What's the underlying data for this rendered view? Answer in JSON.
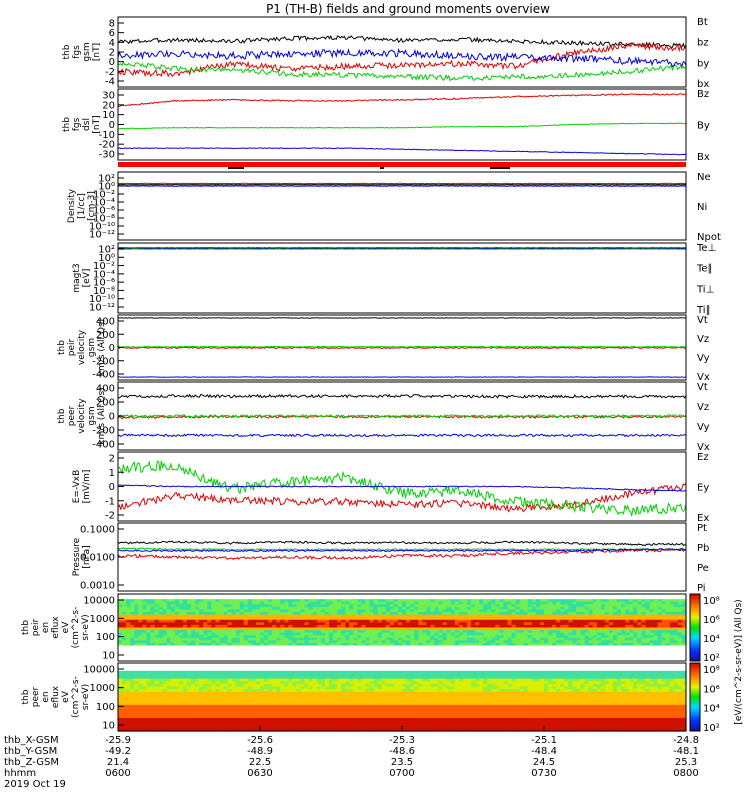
{
  "title": "P1 (TH-B) fields and ground moments overview",
  "colors": {
    "black": "#000000",
    "red": "#e00000",
    "green": "#00d000",
    "blue": "#0000e0"
  },
  "chart_data": [
    {
      "type": "line",
      "name": "fgs",
      "ylabel": [
        "thb",
        "fgs",
        "gsm",
        "[nT]"
      ],
      "yticks": [
        "8",
        "6",
        "4",
        "2",
        "0",
        "-2",
        "-4"
      ],
      "ylim": [
        -4.5,
        9
      ],
      "legend": [
        {
          "label": "Bt",
          "color": "black"
        },
        {
          "label": "bz",
          "color": "red"
        },
        {
          "label": "by",
          "color": "green"
        },
        {
          "label": "bx",
          "color": "blue"
        }
      ],
      "series": [
        {
          "name": "Bt",
          "color": "black",
          "base": [
            4.2,
            4.6,
            4.3,
            4.9,
            5.0,
            4.5,
            4.7,
            4.3,
            4.0,
            3.7,
            3.5
          ],
          "noise": 0.4
        },
        {
          "name": "bz",
          "color": "red",
          "base": [
            -1.5,
            -2.0,
            0.0,
            -1.0,
            -0.5,
            -0.3,
            0.0,
            -0.5,
            2.0,
            3.5,
            3.0
          ],
          "noise": 0.6
        },
        {
          "name": "by",
          "color": "green",
          "base": [
            0.2,
            -1.0,
            -1.2,
            -2.0,
            -2.2,
            -2.5,
            -2.8,
            -2.6,
            -2.2,
            -1.5,
            -0.5
          ],
          "noise": 0.5
        },
        {
          "name": "bx",
          "color": "blue",
          "base": [
            1.5,
            2.0,
            1.5,
            2.0,
            2.0,
            2.0,
            1.5,
            1.2,
            1.0,
            0.5,
            0.0
          ],
          "noise": 0.7
        }
      ]
    },
    {
      "type": "line",
      "name": "fgs_dsl",
      "ylabel": [
        "thb",
        "fgs",
        "dsl",
        "[nT]"
      ],
      "yticks": [
        "30",
        "20",
        "10",
        "0",
        "-10",
        "-20",
        "-30"
      ],
      "ylim": [
        -33,
        33
      ],
      "legend": [
        {
          "label": "Bz",
          "color": "red"
        },
        {
          "label": "By",
          "color": "green"
        },
        {
          "label": "Bx",
          "color": "blue"
        }
      ],
      "series": [
        {
          "name": "Bz",
          "color": "red",
          "base": [
            17,
            22,
            23,
            22,
            22,
            23,
            24,
            26,
            27,
            28,
            28
          ],
          "noise": 0.6
        },
        {
          "name": "By",
          "color": "green",
          "base": [
            -4,
            -3,
            -3,
            -3,
            -3,
            -3,
            -2,
            -2,
            0,
            1,
            1
          ],
          "noise": 0.3
        },
        {
          "name": "Bx",
          "color": "blue",
          "base": [
            -22,
            -22,
            -22,
            -22,
            -22,
            -23,
            -24,
            -25,
            -26,
            -27,
            -28
          ],
          "noise": 0.3
        }
      ]
    },
    {
      "type": "line",
      "name": "density",
      "ylabel": [
        "Density",
        "[1/cc]",
        "[cm-3]"
      ],
      "yticks": [
        "10²",
        "10⁰",
        "10⁻²",
        "10⁻⁴",
        "10⁻⁶",
        "10⁻⁸",
        "10⁻¹⁰",
        "10⁻¹²"
      ],
      "ylim": [
        -13,
        3
      ],
      "log": true,
      "legend": [
        {
          "label": "Ne",
          "color": "red"
        },
        {
          "label": "Ni",
          "color": "black"
        },
        {
          "label": "Npot",
          "color": "blue"
        }
      ],
      "series": [
        {
          "name": "Ne",
          "color": "red",
          "base": [
            0.3,
            0.3,
            0.3,
            0.3,
            0.3,
            0.3,
            0.3,
            0.3,
            0.3,
            0.3,
            0.3
          ],
          "noise": 0.05
        },
        {
          "name": "Ni",
          "color": "black",
          "base": [
            0.0,
            0.0,
            0.0,
            0.0,
            0.0,
            0.0,
            0.0,
            0.0,
            0.0,
            0.0,
            0.0
          ],
          "noise": 0.05
        },
        {
          "name": "Npot",
          "color": "blue",
          "base": [
            -0.3,
            -0.3,
            -0.3,
            -0.3,
            -0.3,
            -0.3,
            -0.3,
            -0.3,
            -0.3,
            -0.3,
            -0.3
          ],
          "noise": 0.05
        }
      ]
    },
    {
      "type": "line",
      "name": "temperature",
      "ylabel": [
        "magt3",
        "[eV]"
      ],
      "yticks": [
        "10²",
        "10⁰",
        "10⁻²",
        "10⁻⁴",
        "10⁻⁶",
        "10⁻⁸",
        "10⁻¹⁰",
        "10⁻¹²"
      ],
      "ylim": [
        -13,
        3
      ],
      "log": true,
      "legend": [
        {
          "label": "Te⊥",
          "color": "red"
        },
        {
          "label": "Te∥",
          "color": "black"
        },
        {
          "label": "Ti⊥",
          "color": "blue"
        },
        {
          "label": "Ti∥",
          "color": "green"
        }
      ],
      "series": [
        {
          "name": "Te⊥",
          "color": "red",
          "base": [
            1.9,
            1.9,
            1.9,
            1.9,
            1.9,
            1.9,
            1.9,
            1.9,
            1.9,
            1.9,
            1.9
          ],
          "noise": 0.05
        },
        {
          "name": "Te∥",
          "color": "black",
          "base": [
            1.8,
            1.8,
            1.8,
            1.8,
            1.8,
            1.8,
            1.8,
            1.8,
            1.8,
            1.8,
            1.8
          ],
          "noise": 0.05
        },
        {
          "name": "Ti⊥",
          "color": "blue",
          "base": [
            1.7,
            1.7,
            1.7,
            1.7,
            1.7,
            1.7,
            1.7,
            1.7,
            1.7,
            1.7,
            1.7
          ],
          "noise": 0.05
        },
        {
          "name": "Ti∥",
          "color": "green",
          "base": [
            1.6,
            1.6,
            1.6,
            1.6,
            1.6,
            1.6,
            1.6,
            1.6,
            1.6,
            1.6,
            1.6
          ],
          "noise": 0.05
        }
      ]
    },
    {
      "type": "line",
      "name": "peir_velocity",
      "ylabel": [
        "thb",
        "peir",
        "velocity",
        "gsm",
        "km/s (All Qs)"
      ],
      "yticks": [
        "400",
        "200",
        "0",
        "-200",
        "-400"
      ],
      "ylim": [
        -440,
        440
      ],
      "legend": [
        {
          "label": "Vt",
          "color": "black"
        },
        {
          "label": "Vz",
          "color": "red"
        },
        {
          "label": "Vy",
          "color": "green"
        },
        {
          "label": "Vx",
          "color": "blue"
        }
      ],
      "series": [
        {
          "name": "Vt",
          "color": "black",
          "base": [
            400,
            400,
            400,
            400,
            400,
            400,
            400,
            400,
            400,
            400,
            400
          ],
          "noise": 3
        },
        {
          "name": "Vz",
          "color": "red",
          "base": [
            -5,
            -5,
            -5,
            -5,
            -5,
            -5,
            -5,
            -5,
            -5,
            -5,
            -5
          ],
          "noise": 8
        },
        {
          "name": "Vy",
          "color": "green",
          "base": [
            10,
            10,
            10,
            10,
            10,
            10,
            10,
            10,
            10,
            10,
            10
          ],
          "noise": 6
        },
        {
          "name": "Vx",
          "color": "blue",
          "base": [
            -400,
            -400,
            -400,
            -400,
            -400,
            -400,
            -400,
            -400,
            -400,
            -400,
            -400
          ],
          "noise": 3
        }
      ]
    },
    {
      "type": "line",
      "name": "peer_velocity",
      "ylabel": [
        "thb",
        "peer",
        "velocity",
        "gsm",
        "km/s (All Qs)"
      ],
      "yticks": [
        "400",
        "200",
        "0",
        "-200",
        "-400"
      ],
      "ylim": [
        -440,
        440
      ],
      "legend": [
        {
          "label": "Vt",
          "color": "black"
        },
        {
          "label": "Vz",
          "color": "red"
        },
        {
          "label": "Vy",
          "color": "green"
        },
        {
          "label": "Vx",
          "color": "blue"
        }
      ],
      "series": [
        {
          "name": "Vt",
          "color": "black",
          "base": [
            250,
            260,
            255,
            260,
            255,
            260,
            255,
            250,
            255,
            250,
            250
          ],
          "noise": 18
        },
        {
          "name": "Vz",
          "color": "red",
          "base": [
            -20,
            -15,
            -10,
            -10,
            -10,
            -10,
            -10,
            -15,
            -10,
            -10,
            -10
          ],
          "noise": 15
        },
        {
          "name": "Vy",
          "color": "green",
          "base": [
            0,
            0,
            0,
            0,
            0,
            0,
            0,
            0,
            0,
            0,
            0
          ],
          "noise": 15
        },
        {
          "name": "Vx",
          "color": "blue",
          "base": [
            -250,
            -250,
            -250,
            -250,
            -250,
            -250,
            -250,
            -250,
            -250,
            -250,
            -250
          ],
          "noise": 15
        }
      ]
    },
    {
      "type": "line",
      "name": "efield",
      "ylabel": [
        "E=-VxB",
        "[mV/m]"
      ],
      "yticks": [
        "2",
        "1",
        "0",
        "-1",
        "-2"
      ],
      "ylim": [
        -2.3,
        2.3
      ],
      "legend": [
        {
          "label": "Ez",
          "color": "red"
        },
        {
          "label": "Ey",
          "color": "green"
        },
        {
          "label": "Ex",
          "color": "blue"
        }
      ],
      "series": [
        {
          "name": "Ez",
          "color": "red",
          "base": [
            -1.4,
            -0.6,
            -0.9,
            -1.0,
            -1.0,
            -1.2,
            -1.1,
            -1.5,
            -1.2,
            -0.5,
            0.0
          ],
          "noise": 0.25
        },
        {
          "name": "Ey",
          "color": "green",
          "base": [
            1.2,
            1.4,
            -0.2,
            0.3,
            0.6,
            -0.4,
            -0.3,
            -1.0,
            -1.3,
            -1.6,
            -1.4
          ],
          "noise": 0.35
        },
        {
          "name": "Ex",
          "color": "blue",
          "base": [
            0.1,
            0.0,
            0.0,
            0.0,
            0.0,
            0.0,
            0.0,
            0.0,
            -0.1,
            -0.2,
            -0.3
          ],
          "noise": 0.03
        }
      ]
    },
    {
      "type": "line",
      "name": "pressure",
      "ylabel": [
        "Pressure",
        "[nPa]"
      ],
      "yticks": [
        "0.1000",
        "0.0100",
        "0.0010"
      ],
      "ylim": [
        -3.5,
        -0.8
      ],
      "log": true,
      "legend": [
        {
          "label": "Pt",
          "color": "black"
        },
        {
          "label": "Pb",
          "color": "red"
        },
        {
          "label": "Pe",
          "color": "green"
        },
        {
          "label": "Pi",
          "color": "blue"
        }
      ],
      "series": [
        {
          "name": "Pt",
          "color": "black",
          "base": [
            -1.6,
            -1.55,
            -1.6,
            -1.55,
            -1.6,
            -1.58,
            -1.6,
            -1.55,
            -1.6,
            -1.65,
            -1.65
          ],
          "noise": 0.04
        },
        {
          "name": "Pb",
          "color": "red",
          "base": [
            -2.1,
            -2.15,
            -2.2,
            -2.15,
            -2.2,
            -2.1,
            -2.1,
            -2.0,
            -1.95,
            -1.9,
            -1.9
          ],
          "noise": 0.06
        },
        {
          "name": "Pe",
          "color": "green",
          "base": [
            -1.8,
            -1.85,
            -1.85,
            -1.85,
            -1.85,
            -1.85,
            -1.85,
            -1.85,
            -1.85,
            -1.85,
            -1.85
          ],
          "noise": 0.03
        },
        {
          "name": "Pi",
          "color": "blue",
          "base": [
            -1.9,
            -1.9,
            -1.9,
            -1.9,
            -1.9,
            -1.9,
            -1.9,
            -1.9,
            -1.9,
            -1.85,
            -1.85
          ],
          "noise": 0.03
        }
      ]
    },
    {
      "type": "heatmap",
      "name": "peir_spec",
      "ylabel": [
        "thb",
        "peir",
        "en",
        "eflux",
        "eV",
        "(cm^2-s-",
        "sr-eV)"
      ],
      "yticks": [
        "10000",
        "1000",
        "100",
        "10"
      ],
      "ylim": [
        0.6,
        4.2
      ],
      "log": true,
      "cbar_ticks": [
        "10⁸",
        "10⁶",
        "10⁴",
        "10²"
      ]
    },
    {
      "type": "heatmap",
      "name": "peer_spec",
      "ylabel": [
        "thb",
        "peer",
        "en",
        "eflux",
        "eV",
        "(cm^2-s-",
        "sr-eV)"
      ],
      "yticks": [
        "10000",
        "1000",
        "100",
        "10"
      ],
      "ylim": [
        0.6,
        4.2
      ],
      "log": true,
      "cbar_ticks": [
        "10⁸",
        "10⁶",
        "10⁴",
        "10²"
      ]
    }
  ],
  "colorbar_label": "[eV/(cm^2-s-sr-eV)] (All Qs)",
  "xaxis": {
    "rows": [
      {
        "label": "thb_X-GSM",
        "values": [
          "-25.9",
          "-25.6",
          "-25.3",
          "-25.1",
          "-24.8"
        ]
      },
      {
        "label": "thb_Y-GSM",
        "values": [
          "-49.2",
          "-48.9",
          "-48.6",
          "-48.4",
          "-48.1"
        ]
      },
      {
        "label": "thb_Z-GSM",
        "values": [
          "21.4",
          "22.5",
          "23.5",
          "24.5",
          "25.3"
        ]
      },
      {
        "label": "hhmm",
        "values": [
          "0600",
          "0630",
          "0700",
          "0730",
          "0800"
        ]
      }
    ],
    "date": "2019 Oct 19"
  }
}
